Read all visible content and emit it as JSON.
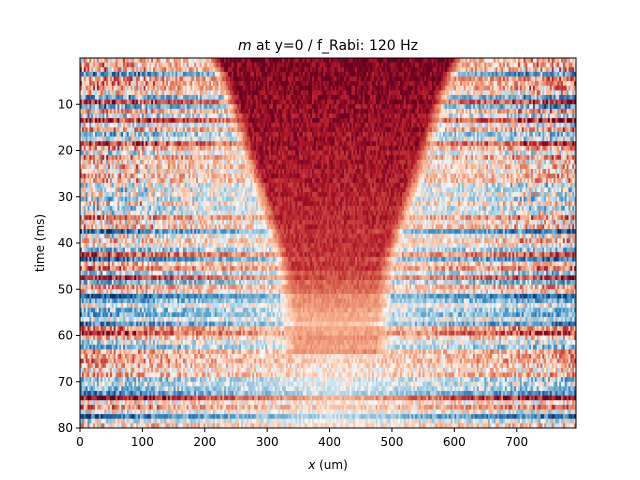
{
  "chart_data": {
    "type": "heatmap",
    "title_var": "m",
    "title_rest": " at y=0 / f_Rabi: 120 Hz",
    "xlabel_var": "x",
    "xlabel_rest": " (um)",
    "ylabel": "time (ms)",
    "xlim": [
      0,
      795
    ],
    "ylim": [
      80,
      1
    ],
    "x_ticks": [
      0,
      100,
      200,
      300,
      400,
      500,
      600,
      700
    ],
    "y_ticks": [
      10,
      20,
      30,
      40,
      50,
      60,
      70,
      80
    ],
    "colormap": "RdBu_r",
    "grid": false,
    "value_range": [
      -1,
      1
    ],
    "rows": 80,
    "cols": 265,
    "description_of_pattern": {
      "central_red_region_center_x": 410,
      "central_red_region_halfwidth_top": 170,
      "central_red_region_halfwidth_at_45ms": 70,
      "central_red_region_fade_time": 65,
      "edges": "alternating red/blue horizontal stripes, stronger at later times"
    }
  },
  "colors": {
    "deep_red": "#67001f",
    "red": "#b2182b",
    "light_red": "#f4a582",
    "white": "#f7f7f7",
    "light_blue": "#92c5de",
    "blue": "#2166ac",
    "deep_blue": "#053061"
  }
}
